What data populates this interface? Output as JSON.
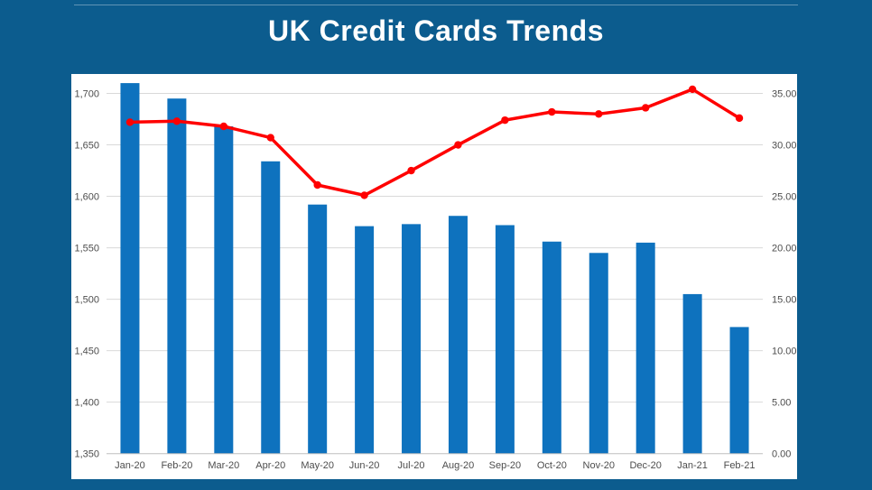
{
  "page": {
    "background_color": "#0C5C8E",
    "title": "UK Credit Cards Trends",
    "title_color": "#FFFFFF"
  },
  "chart_data": {
    "type": "combo-bar-line",
    "title": "UK Credit Cards Trends",
    "legend": "none",
    "grid": true,
    "gridline_color": "#D9D9D9",
    "axis_line_color": "#BFBFBF",
    "tick_text_color": "#4D4D4D",
    "bar_color": "#0E72BE",
    "line_color": "#FF0000",
    "categories": [
      "Jan-20",
      "Feb-20",
      "Mar-20",
      "Apr-20",
      "May-20",
      "Jun-20",
      "Jul-20",
      "Aug-20",
      "Sep-20",
      "Oct-20",
      "Nov-20",
      "Dec-20",
      "Jan-21",
      "Feb-21"
    ],
    "series": [
      {
        "name": "bars",
        "type": "bar",
        "axis": "left",
        "values": [
          1710,
          1695,
          1668,
          1634,
          1592,
          1571,
          1573,
          1581,
          1572,
          1556,
          1545,
          1555,
          1505,
          1473
        ]
      },
      {
        "name": "line",
        "type": "line",
        "axis": "right",
        "values": [
          32.2,
          32.3,
          31.8,
          30.7,
          26.1,
          25.1,
          27.5,
          30.0,
          32.4,
          33.2,
          33.0,
          33.6,
          35.4,
          32.6
        ]
      }
    ],
    "left_axis": {
      "min": 1350,
      "max": 1700,
      "step": 50,
      "tick_labels": [
        "1,350",
        "1,400",
        "1,450",
        "1,500",
        "1,550",
        "1,600",
        "1,650",
        "1,700"
      ]
    },
    "right_axis": {
      "min": 0,
      "max": 35,
      "step": 5,
      "tick_labels": [
        "0.00",
        "5.00",
        "10.00",
        "15.00",
        "20.00",
        "25.00",
        "30.00",
        "35.00"
      ]
    }
  }
}
